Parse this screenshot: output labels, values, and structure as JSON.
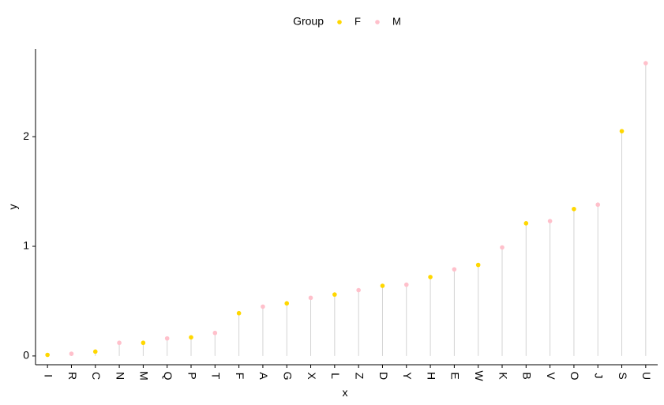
{
  "chart_data": {
    "type": "lollipop",
    "xlabel": "x",
    "ylabel": "y",
    "legend": {
      "title": "Group",
      "position": "top",
      "entries": [
        {
          "name": "F",
          "color": "#FFD700"
        },
        {
          "name": "M",
          "color": "#FFC0CB"
        }
      ]
    },
    "ylim": [
      -0.08,
      2.8
    ],
    "yticks": [
      0,
      1,
      2
    ],
    "grid": false,
    "segment_color": "#D3D3D3",
    "points": [
      {
        "x": "I",
        "y": 0.01,
        "group": "F"
      },
      {
        "x": "R",
        "y": 0.02,
        "group": "M"
      },
      {
        "x": "C",
        "y": 0.04,
        "group": "F"
      },
      {
        "x": "N",
        "y": 0.12,
        "group": "M"
      },
      {
        "x": "M",
        "y": 0.12,
        "group": "F"
      },
      {
        "x": "Q",
        "y": 0.16,
        "group": "M"
      },
      {
        "x": "P",
        "y": 0.17,
        "group": "F"
      },
      {
        "x": "T",
        "y": 0.21,
        "group": "M"
      },
      {
        "x": "F",
        "y": 0.39,
        "group": "F"
      },
      {
        "x": "A",
        "y": 0.45,
        "group": "M"
      },
      {
        "x": "G",
        "y": 0.48,
        "group": "F"
      },
      {
        "x": "X",
        "y": 0.53,
        "group": "M"
      },
      {
        "x": "L",
        "y": 0.56,
        "group": "F"
      },
      {
        "x": "Z",
        "y": 0.6,
        "group": "M"
      },
      {
        "x": "D",
        "y": 0.64,
        "group": "F"
      },
      {
        "x": "Y",
        "y": 0.65,
        "group": "M"
      },
      {
        "x": "H",
        "y": 0.72,
        "group": "F"
      },
      {
        "x": "E",
        "y": 0.79,
        "group": "M"
      },
      {
        "x": "W",
        "y": 0.83,
        "group": "F"
      },
      {
        "x": "K",
        "y": 0.99,
        "group": "M"
      },
      {
        "x": "B",
        "y": 1.21,
        "group": "F"
      },
      {
        "x": "V",
        "y": 1.23,
        "group": "M"
      },
      {
        "x": "O",
        "y": 1.34,
        "group": "F"
      },
      {
        "x": "J",
        "y": 1.38,
        "group": "M"
      },
      {
        "x": "S",
        "y": 2.05,
        "group": "F"
      },
      {
        "x": "U",
        "y": 2.67,
        "group": "M"
      }
    ]
  }
}
